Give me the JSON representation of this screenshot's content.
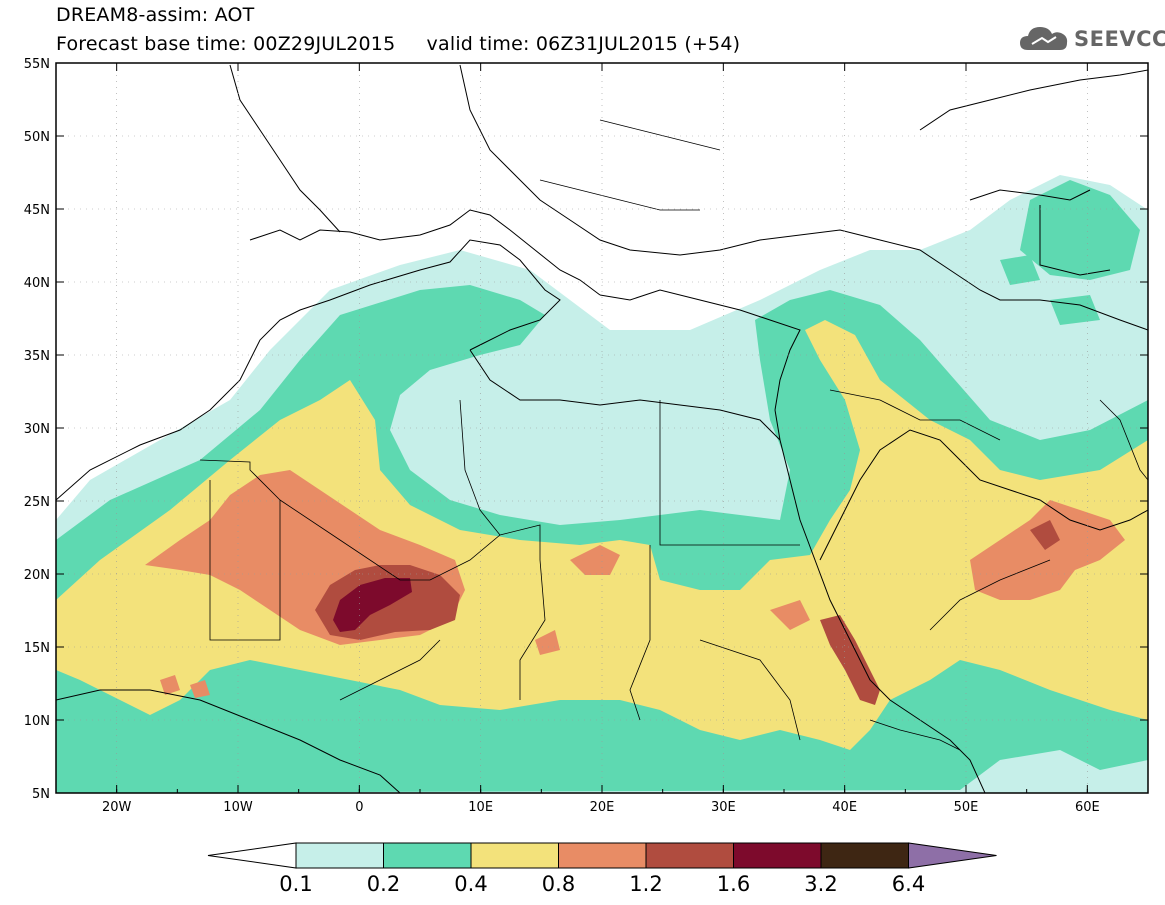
{
  "header": {
    "line1": "DREAM8-assim: AOT",
    "line2": "Forecast base time: 00Z29JUL2015     valid time: 06Z31JUL2015 (+54)"
  },
  "logo": {
    "text": "SEEVCCC",
    "icon": "cloud-icon"
  },
  "map": {
    "lon_range": [
      -25,
      65
    ],
    "lat_range": [
      5,
      55
    ],
    "lon_ticks": [
      "20W",
      "10W",
      "0",
      "10E",
      "20E",
      "30E",
      "40E",
      "50E",
      "60E"
    ],
    "lat_ticks": [
      "55N",
      "50N",
      "45N",
      "40N",
      "35N",
      "30N",
      "25N",
      "20N",
      "15N",
      "10N",
      "5N"
    ]
  },
  "colorbar": {
    "levels": [
      "0.1",
      "0.2",
      "0.4",
      "0.8",
      "1.2",
      "1.6",
      "3.2",
      "6.4"
    ],
    "colors": [
      "#ffffff",
      "#c6efe9",
      "#5ed9b1",
      "#f3e27b",
      "#e88c65",
      "#b04c3f",
      "#7d0a2c",
      "#3e2613",
      "#8e6fa7"
    ]
  }
}
